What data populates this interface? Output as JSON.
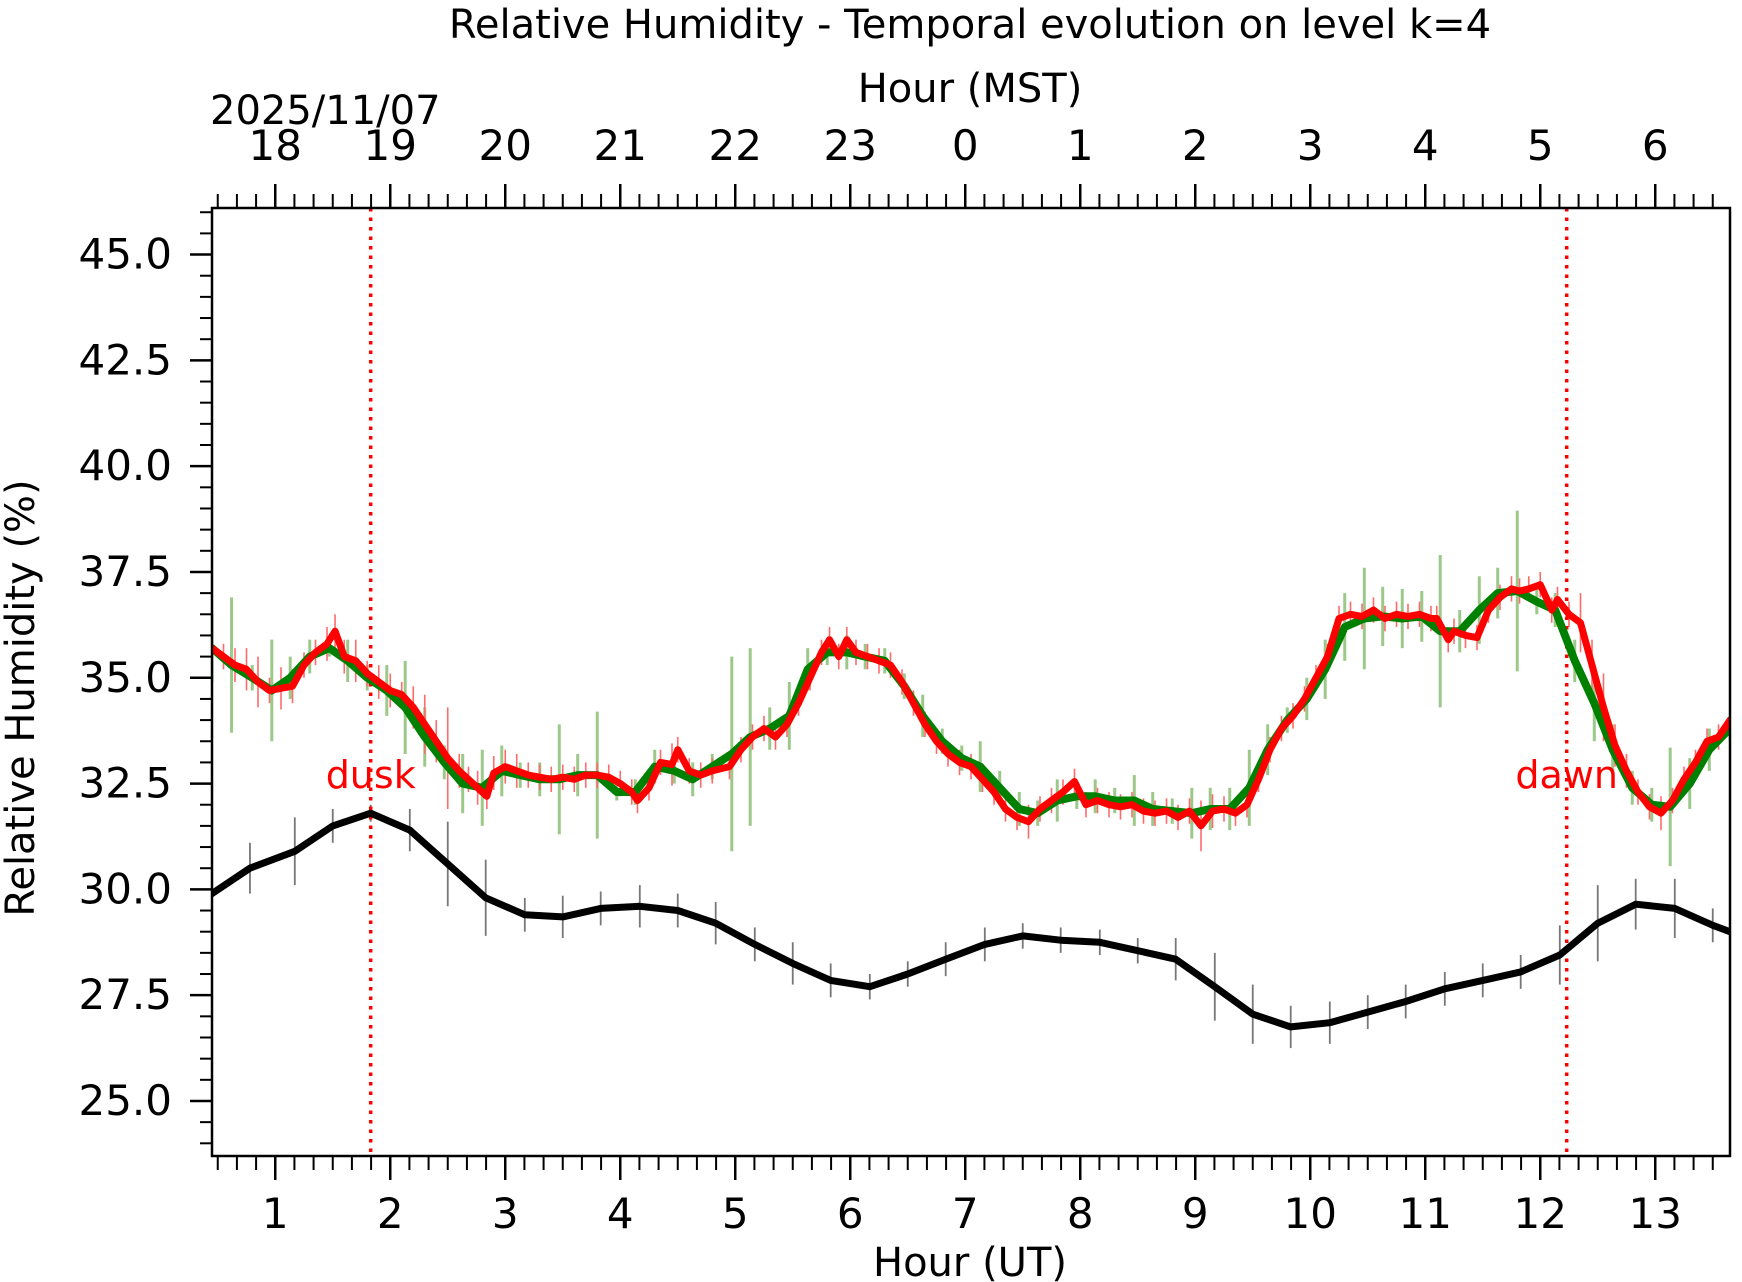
{
  "chart_data": {
    "type": "line",
    "title": "Relative Humidity - Temporal evolution on level k=4",
    "xlabel": "Hour (UT)",
    "xlabel_top": "Hour (MST)",
    "ylabel": "Relative Humidity (%)",
    "date_label": "2025/11/07",
    "xlim": [
      0.45,
      13.65
    ],
    "ylim": [
      23.7,
      46.1
    ],
    "y_ticks": [
      "25.0",
      "27.5",
      "30.0",
      "32.5",
      "35.0",
      "37.5",
      "40.0",
      "42.5",
      "45.0"
    ],
    "x_ticks": [
      "1",
      "2",
      "3",
      "4",
      "5",
      "6",
      "7",
      "8",
      "9",
      "10",
      "11",
      "12",
      "13"
    ],
    "x_ticks_top": [
      "18",
      "19",
      "20",
      "21",
      "22",
      "23",
      "0",
      "1",
      "2",
      "3",
      "4",
      "5",
      "6"
    ],
    "vlines": [
      {
        "x": 1.83,
        "label": "dusk",
        "color": "#ff0000",
        "label_y": 32.4
      },
      {
        "x": 12.23,
        "label": "dawn",
        "color": "#ff0000",
        "label_y": 32.4
      }
    ],
    "colors": {
      "series_black": "#000000",
      "series_green": "#008000",
      "series_red": "#ff0000",
      "error_green": "#9cc98a",
      "error_red": "#ff6a6a",
      "error_black": "#777777"
    },
    "series": [
      {
        "name": "black",
        "x": [
          0.45,
          0.78,
          1.17,
          1.5,
          1.83,
          2.17,
          2.5,
          2.83,
          3.17,
          3.5,
          3.83,
          4.17,
          4.5,
          4.83,
          5.17,
          5.5,
          5.83,
          6.17,
          6.5,
          6.83,
          7.17,
          7.5,
          7.83,
          8.17,
          8.5,
          8.83,
          9.17,
          9.5,
          9.83,
          10.17,
          10.5,
          10.83,
          11.17,
          11.5,
          11.83,
          12.17,
          12.5,
          12.83,
          13.17,
          13.5,
          13.65
        ],
        "y": [
          29.9,
          30.5,
          30.9,
          31.5,
          31.8,
          31.4,
          30.6,
          29.8,
          29.4,
          29.35,
          29.55,
          29.6,
          29.5,
          29.2,
          28.7,
          28.25,
          27.85,
          27.7,
          28.0,
          28.35,
          28.7,
          28.9,
          28.8,
          28.75,
          28.55,
          28.35,
          27.7,
          27.05,
          26.75,
          26.85,
          27.1,
          27.35,
          27.65,
          27.85,
          28.05,
          28.45,
          29.2,
          29.65,
          29.55,
          29.15,
          29.0
        ],
        "err": [
          0.9,
          0.6,
          0.8,
          0.4,
          0.2,
          0.5,
          1.0,
          0.9,
          0.4,
          0.5,
          0.4,
          0.5,
          0.4,
          0.5,
          0.4,
          0.5,
          0.4,
          0.3,
          0.3,
          0.4,
          0.4,
          0.3,
          0.3,
          0.3,
          0.3,
          0.5,
          0.8,
          0.7,
          0.5,
          0.5,
          0.4,
          0.4,
          0.4,
          0.4,
          0.4,
          0.7,
          0.9,
          0.6,
          0.7,
          0.4,
          0.4
        ]
      },
      {
        "name": "green",
        "x": [
          0.45,
          0.62,
          0.8,
          0.97,
          1.13,
          1.3,
          1.47,
          1.63,
          1.8,
          1.97,
          2.13,
          2.3,
          2.47,
          2.63,
          2.8,
          2.97,
          3.13,
          3.3,
          3.47,
          3.63,
          3.8,
          3.97,
          4.13,
          4.3,
          4.47,
          4.63,
          4.8,
          4.97,
          5.13,
          5.3,
          5.47,
          5.63,
          5.8,
          5.97,
          6.13,
          6.3,
          6.47,
          6.63,
          6.8,
          6.97,
          7.13,
          7.3,
          7.47,
          7.63,
          7.8,
          7.97,
          8.13,
          8.3,
          8.47,
          8.63,
          8.8,
          8.97,
          9.13,
          9.3,
          9.47,
          9.63,
          9.8,
          9.97,
          10.13,
          10.3,
          10.47,
          10.63,
          10.8,
          10.97,
          11.13,
          11.3,
          11.47,
          11.63,
          11.8,
          11.97,
          12.13,
          12.3,
          12.47,
          12.63,
          12.8,
          12.97,
          13.13,
          13.3,
          13.47,
          13.65
        ],
        "y": [
          35.7,
          35.3,
          35.0,
          34.7,
          35.0,
          35.5,
          35.7,
          35.4,
          35.0,
          34.7,
          34.3,
          33.6,
          33.0,
          32.5,
          32.4,
          32.8,
          32.7,
          32.6,
          32.6,
          32.7,
          32.7,
          32.3,
          32.3,
          32.9,
          32.8,
          32.6,
          32.9,
          33.2,
          33.6,
          33.8,
          34.1,
          35.2,
          35.6,
          35.6,
          35.5,
          35.4,
          34.8,
          34.1,
          33.5,
          33.1,
          32.9,
          32.4,
          31.9,
          31.8,
          32.1,
          32.2,
          32.2,
          32.1,
          32.1,
          31.9,
          31.85,
          31.8,
          31.9,
          31.9,
          32.4,
          33.3,
          34.0,
          34.5,
          35.2,
          36.2,
          36.4,
          36.45,
          36.4,
          36.45,
          36.1,
          36.1,
          36.6,
          37.0,
          37.05,
          36.8,
          36.6,
          35.4,
          34.4,
          33.3,
          32.4,
          32.0,
          31.95,
          32.5,
          33.3,
          33.8
        ],
        "err": [
          0.8,
          1.6,
          0.3,
          1.2,
          0.5,
          0.4,
          0.2,
          0.5,
          0.3,
          0.6,
          1.1,
          0.7,
          0.4,
          0.7,
          0.9,
          0.6,
          0.3,
          0.4,
          1.3,
          0.5,
          1.5,
          0.2,
          0.3,
          0.4,
          0.3,
          0.4,
          0.3,
          2.3,
          2.1,
          0.5,
          0.8,
          0.5,
          0.3,
          0.4,
          0.3,
          0.3,
          0.3,
          0.5,
          0.3,
          0.3,
          0.6,
          0.4,
          0.4,
          0.3,
          0.5,
          0.3,
          0.4,
          0.3,
          0.6,
          0.4,
          0.3,
          0.6,
          0.5,
          0.5,
          0.9,
          0.6,
          0.3,
          0.5,
          0.7,
          0.8,
          1.2,
          0.7,
          0.7,
          0.6,
          1.8,
          0.5,
          0.8,
          0.6,
          1.9,
          0.3,
          0.4,
          0.5,
          0.9,
          0.6,
          0.4,
          0.4,
          1.4,
          0.6,
          0.5,
          0.3
        ]
      },
      {
        "name": "red",
        "x": [
          0.45,
          0.55,
          0.65,
          0.75,
          0.85,
          0.95,
          1.05,
          1.15,
          1.25,
          1.35,
          1.45,
          1.52,
          1.6,
          1.7,
          1.8,
          1.9,
          2.0,
          2.1,
          2.2,
          2.3,
          2.4,
          2.5,
          2.6,
          2.68,
          2.76,
          2.84,
          2.9,
          3.0,
          3.1,
          3.2,
          3.3,
          3.4,
          3.5,
          3.6,
          3.7,
          3.8,
          3.9,
          4.0,
          4.1,
          4.15,
          4.25,
          4.35,
          4.45,
          4.5,
          4.6,
          4.7,
          4.8,
          4.95,
          5.05,
          5.15,
          5.25,
          5.35,
          5.45,
          5.55,
          5.65,
          5.75,
          5.82,
          5.9,
          5.97,
          6.05,
          6.15,
          6.25,
          6.35,
          6.45,
          6.55,
          6.65,
          6.75,
          6.85,
          6.95,
          7.05,
          7.15,
          7.25,
          7.35,
          7.45,
          7.55,
          7.65,
          7.75,
          7.85,
          7.95,
          8.05,
          8.15,
          8.25,
          8.35,
          8.45,
          8.55,
          8.65,
          8.75,
          8.85,
          8.95,
          9.05,
          9.15,
          9.25,
          9.35,
          9.45,
          9.55,
          9.65,
          9.75,
          9.85,
          9.95,
          10.05,
          10.15,
          10.25,
          10.35,
          10.45,
          10.55,
          10.65,
          10.75,
          10.85,
          10.95,
          11.05,
          11.1,
          11.2,
          11.25,
          11.35,
          11.45,
          11.55,
          11.65,
          11.75,
          11.82,
          11.9,
          12.0,
          12.1,
          12.15,
          12.25,
          12.35,
          12.45,
          12.55,
          12.65,
          12.75,
          12.85,
          12.95,
          13.05,
          13.15,
          13.25,
          13.35,
          13.45,
          13.55,
          13.65
        ],
        "y": [
          35.7,
          35.5,
          35.3,
          35.2,
          34.9,
          34.7,
          34.75,
          34.8,
          35.3,
          35.6,
          35.8,
          36.1,
          35.5,
          35.4,
          35.1,
          34.9,
          34.7,
          34.6,
          34.3,
          33.9,
          33.5,
          33.1,
          32.8,
          32.6,
          32.4,
          32.2,
          32.75,
          32.9,
          32.8,
          32.7,
          32.65,
          32.6,
          32.65,
          32.6,
          32.7,
          32.7,
          32.65,
          32.5,
          32.3,
          32.1,
          32.4,
          33.0,
          32.95,
          33.3,
          32.8,
          32.7,
          32.8,
          32.9,
          33.3,
          33.6,
          33.8,
          33.6,
          33.9,
          34.4,
          35.0,
          35.6,
          35.9,
          35.5,
          35.9,
          35.6,
          35.5,
          35.4,
          35.3,
          34.9,
          34.4,
          33.9,
          33.5,
          33.2,
          33.0,
          32.9,
          32.6,
          32.3,
          31.9,
          31.7,
          31.6,
          31.9,
          32.1,
          32.3,
          32.55,
          32.0,
          32.1,
          32.0,
          31.95,
          32.0,
          31.85,
          31.8,
          31.85,
          31.7,
          31.85,
          31.5,
          31.85,
          31.9,
          31.8,
          32.0,
          32.6,
          33.3,
          33.8,
          34.1,
          34.5,
          35.0,
          35.5,
          36.4,
          36.5,
          36.45,
          36.6,
          36.4,
          36.5,
          36.45,
          36.5,
          36.4,
          36.4,
          35.9,
          36.1,
          36.0,
          35.95,
          36.6,
          36.9,
          37.1,
          37.05,
          37.1,
          37.2,
          36.6,
          36.85,
          36.5,
          36.3,
          35.3,
          34.3,
          33.4,
          32.8,
          32.3,
          31.95,
          31.8,
          32.1,
          32.6,
          33.0,
          33.5,
          33.6,
          34.0
        ],
        "err": [
          0.6,
          0.3,
          0.4,
          0.5,
          0.6,
          0.3,
          0.5,
          0.4,
          0.3,
          0.3,
          0.4,
          0.4,
          0.4,
          0.5,
          0.3,
          0.4,
          0.4,
          0.3,
          0.5,
          0.7,
          0.5,
          1.2,
          0.4,
          0.3,
          0.4,
          0.3,
          0.4,
          0.4,
          0.4,
          0.3,
          0.3,
          0.3,
          0.3,
          0.3,
          0.3,
          0.3,
          0.3,
          0.3,
          0.3,
          0.3,
          0.3,
          0.3,
          0.5,
          0.3,
          0.3,
          0.3,
          0.3,
          0.3,
          0.3,
          0.3,
          0.3,
          0.3,
          0.3,
          0.3,
          0.3,
          0.3,
          0.3,
          0.3,
          0.3,
          0.3,
          0.3,
          0.3,
          0.3,
          0.3,
          0.3,
          0.3,
          0.3,
          0.3,
          0.3,
          0.3,
          0.3,
          0.3,
          0.3,
          0.3,
          0.4,
          0.3,
          0.3,
          0.3,
          0.3,
          0.3,
          0.3,
          0.3,
          0.3,
          0.3,
          0.3,
          0.3,
          0.3,
          0.3,
          0.3,
          0.6,
          0.4,
          0.3,
          0.3,
          0.3,
          0.3,
          0.3,
          0.3,
          0.3,
          0.3,
          0.3,
          0.3,
          0.3,
          0.3,
          0.3,
          0.3,
          0.3,
          0.3,
          0.3,
          0.3,
          0.3,
          0.3,
          0.3,
          0.3,
          0.3,
          0.3,
          0.3,
          0.3,
          0.3,
          0.3,
          0.3,
          0.3,
          0.3,
          0.3,
          0.3,
          0.7,
          0.6,
          0.8,
          0.5,
          0.4,
          0.3,
          0.3,
          0.4,
          0.3,
          0.3,
          0.3,
          0.3,
          0.3,
          0.3
        ]
      }
    ]
  }
}
